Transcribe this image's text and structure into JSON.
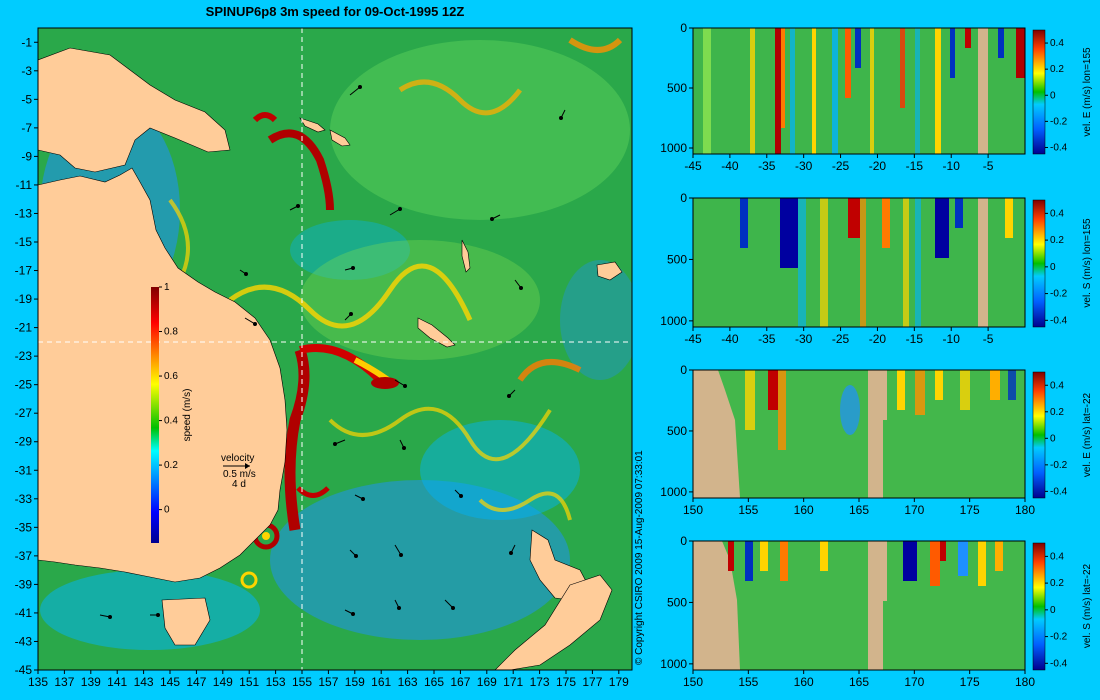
{
  "title": "SPINUP6p8 3m speed for 09-Oct-1995 12Z",
  "copyright": "© Copyright CSIRO 2009   15-Aug-2009 07:33:01",
  "colors": {
    "background": "#00ccff",
    "land": "#ffcc99",
    "bottom": "#d2b48c",
    "crosshair": "#ffffff"
  },
  "chart_data": [
    {
      "type": "heatmap",
      "name": "surface speed map",
      "xlabel": "",
      "ylabel": "",
      "x_ticks": [
        "135",
        "137",
        "139",
        "141",
        "143",
        "145",
        "147",
        "149",
        "151",
        "153",
        "155",
        "157",
        "159",
        "161",
        "163",
        "165",
        "167",
        "169",
        "171",
        "173",
        "175",
        "177",
        "179"
      ],
      "y_ticks": [
        "-1",
        "-3",
        "-5",
        "-7",
        "-9",
        "-11",
        "-13",
        "-15",
        "-17",
        "-19",
        "-21",
        "-23",
        "-25",
        "-27",
        "-29",
        "-31",
        "-33",
        "-35",
        "-37",
        "-39",
        "-41",
        "-43",
        "-45"
      ],
      "xlim": [
        135,
        180
      ],
      "ylim": [
        -45,
        0
      ],
      "crosshair_lon": 155,
      "crosshair_lat": -22,
      "colorbar": {
        "label": "speed (m/s)",
        "ticks": [
          "1",
          "0.8",
          "0.6",
          "0.4",
          "0.2",
          "0"
        ],
        "range": [
          -0.15,
          1
        ]
      },
      "vector_legend": {
        "title": "velocity",
        "scale": "0.5 m/s",
        "duration": "4 d"
      }
    },
    {
      "type": "heatmap",
      "name": "vel E lon=155 section",
      "xlabel": "",
      "ylabel": "",
      "x_ticks": [
        "-45",
        "-40",
        "-35",
        "-30",
        "-25",
        "-20",
        "-15",
        "-10",
        "-5"
      ],
      "y_ticks": [
        "0",
        "500",
        "1000"
      ],
      "xlim": [
        -45,
        0
      ],
      "ylim": [
        1050,
        0
      ],
      "colorbar": {
        "label": "vel. E (m/s) lon=155",
        "ticks": [
          "0.4",
          "0.2",
          "0",
          "-0.2",
          "-0.4"
        ],
        "range": [
          -0.45,
          0.5
        ]
      }
    },
    {
      "type": "heatmap",
      "name": "vel S lon=155 section",
      "xlabel": "",
      "ylabel": "",
      "x_ticks": [
        "-45",
        "-40",
        "-35",
        "-30",
        "-25",
        "-20",
        "-15",
        "-10",
        "-5"
      ],
      "y_ticks": [
        "0",
        "500",
        "1000"
      ],
      "xlim": [
        -45,
        0
      ],
      "ylim": [
        1050,
        0
      ],
      "colorbar": {
        "label": "vel. S (m/s) lon=155",
        "ticks": [
          "0.4",
          "0.2",
          "0",
          "-0.2",
          "-0.4"
        ],
        "range": [
          -0.45,
          0.5
        ]
      }
    },
    {
      "type": "heatmap",
      "name": "vel E lat=-22 section",
      "xlabel": "",
      "ylabel": "",
      "x_ticks": [
        "150",
        "155",
        "160",
        "165",
        "170",
        "175",
        "180"
      ],
      "y_ticks": [
        "0",
        "500",
        "1000"
      ],
      "xlim": [
        150,
        180
      ],
      "ylim": [
        1050,
        0
      ],
      "colorbar": {
        "label": "vel. E (m/s) lat=-22",
        "ticks": [
          "0.4",
          "0.2",
          "0",
          "-0.2",
          "-0.4"
        ],
        "range": [
          -0.45,
          0.5
        ]
      }
    },
    {
      "type": "heatmap",
      "name": "vel S lat=-22 section",
      "xlabel": "",
      "ylabel": "",
      "x_ticks": [
        "150",
        "155",
        "160",
        "165",
        "170",
        "175",
        "180"
      ],
      "y_ticks": [
        "0",
        "500",
        "1000"
      ],
      "xlim": [
        150,
        180
      ],
      "ylim": [
        1050,
        0
      ],
      "colorbar": {
        "label": "vel. S (m/s) lat=-22",
        "ticks": [
          "0.4",
          "0.2",
          "0",
          "-0.2",
          "-0.4"
        ],
        "range": [
          -0.45,
          0.5
        ]
      }
    }
  ]
}
